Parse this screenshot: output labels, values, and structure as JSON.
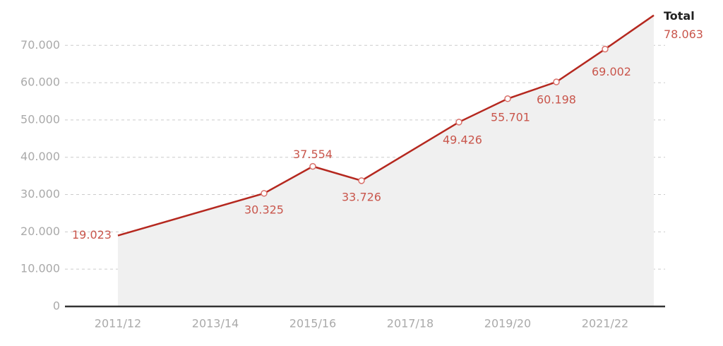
{
  "chart_data": {
    "type": "line",
    "categories": [
      "2011/12",
      null,
      "2013/14",
      null,
      "2015/16",
      null,
      "2017/18",
      null,
      "2019/20",
      null,
      "2021/22",
      null
    ],
    "series": [
      {
        "name": "Total",
        "color": "#b5281f",
        "values": [
          19023,
          null,
          null,
          30325,
          37554,
          33726,
          null,
          49426,
          55701,
          60198,
          69002,
          78063
        ],
        "value_labels": [
          "19.023",
          null,
          null,
          "30.325",
          "37.554",
          "33.726",
          null,
          "49.426",
          "55.701",
          "60.198",
          "69.002",
          "78.063"
        ]
      }
    ],
    "ylim": [
      0,
      78000
    ],
    "yticks": [
      {
        "value": 0,
        "label": "0"
      },
      {
        "value": 10000,
        "label": "10.000"
      },
      {
        "value": 20000,
        "label": "20.000"
      },
      {
        "value": 30000,
        "label": "30.000"
      },
      {
        "value": 40000,
        "label": "40.000"
      },
      {
        "value": 50000,
        "label": "50.000"
      },
      {
        "value": 60000,
        "label": "60.000"
      },
      {
        "value": 70000,
        "label": "70.000"
      }
    ],
    "grid": true,
    "area_color": "#f0f0f0"
  }
}
